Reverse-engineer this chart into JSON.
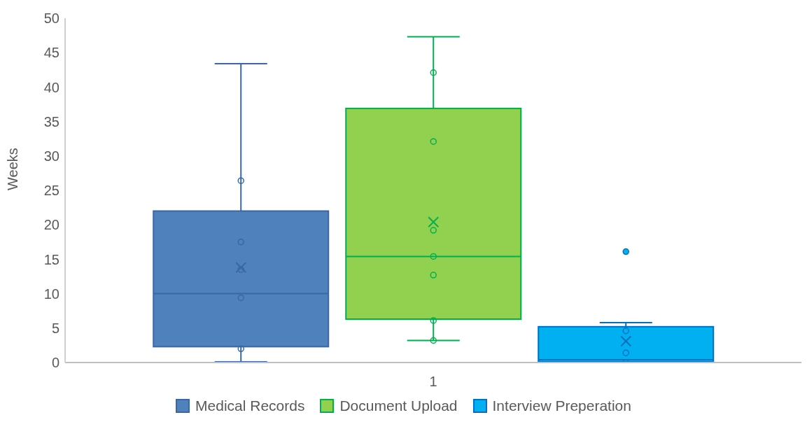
{
  "chart_data": {
    "type": "box",
    "categories": [
      "1"
    ],
    "ylabel": "Weeks",
    "ylim": [
      0,
      50
    ],
    "yticks": [
      0,
      5,
      10,
      15,
      20,
      25,
      30,
      35,
      40,
      45,
      50
    ],
    "legend": "bottom",
    "marker": "circle",
    "series": [
      {
        "name": "Medical Records",
        "color": "#4f81bd",
        "boxes": [
          {
            "low": 0.1,
            "q1": 2.3,
            "median": 10.0,
            "q3": 22.0,
            "high": 43.4,
            "mean": 13.8
          }
        ]
      },
      {
        "name": "Document Upload",
        "color": "#92d050",
        "boxes": [
          {
            "low": 3.2,
            "q1": 6.3,
            "median": 15.4,
            "q3": 36.9,
            "high": 47.3,
            "mean": 20.4
          }
        ]
      },
      {
        "name": "Interview Preperation",
        "color": "#00b0f0",
        "boxes": [
          {
            "low": 0,
            "q1": 0.1,
            "median": 0.4,
            "q3": 5.2,
            "high": 5.8,
            "mean": 3.1,
            "outliers": [
              16.1
            ]
          }
        ]
      },
      {
        "type": "scatter",
        "color": "#3a67a6",
        "x": [
          "1",
          "1",
          "1",
          "1",
          "1"
        ],
        "values": [
          26.4,
          17.5,
          13.5,
          9.4,
          2.0
        ]
      },
      {
        "type": "scatter",
        "color": "#00b050",
        "x": [
          "1",
          "1",
          "1",
          "1",
          "1",
          "1",
          "1"
        ],
        "values": [
          42.1,
          32.1,
          19.2,
          15.4,
          12.7,
          6.1,
          3.2
        ]
      },
      {
        "type": "scatter",
        "color": "#0070c0",
        "x": [
          "1",
          "1",
          "1"
        ],
        "values": [
          4.6,
          1.4,
          0
        ]
      }
    ]
  }
}
